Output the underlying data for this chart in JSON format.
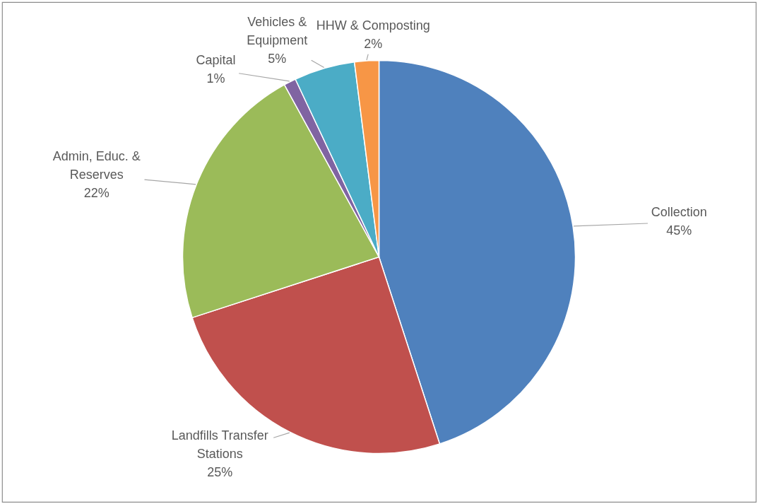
{
  "chart_data": {
    "type": "pie",
    "categories": [
      "Collection",
      "Landfills Transfer Stations",
      "Admin, Educ. & Reserves",
      "Capital",
      "Vehicles & Equipment",
      "HHW & Composting"
    ],
    "values": [
      45,
      25,
      22,
      1,
      5,
      2
    ],
    "colors": [
      "#4f81bd",
      "#c0504d",
      "#9bbb59",
      "#8064a2",
      "#4bacc6",
      "#f79646"
    ],
    "value_labels": [
      "45%",
      "25%",
      "22%",
      "1%",
      "5%",
      "2%"
    ]
  }
}
